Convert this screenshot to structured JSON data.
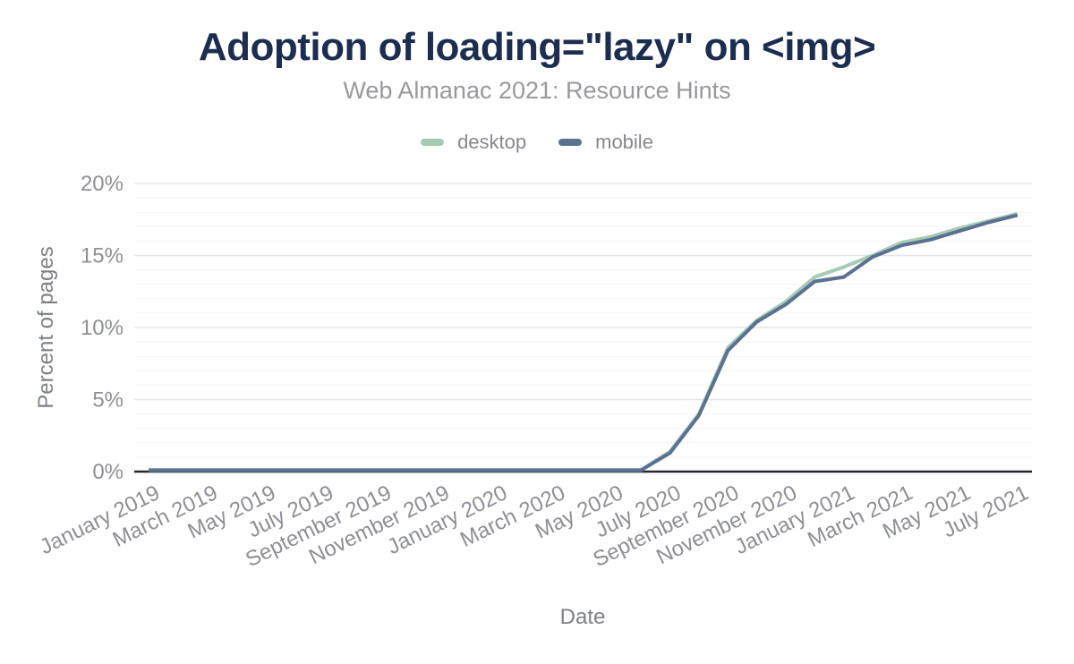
{
  "header": {
    "title": "Adoption of loading=\"lazy\" on <img>",
    "subtitle": "Web Almanac 2021: Resource Hints"
  },
  "colors": {
    "title": "#1c2d4f",
    "desktop": "#a7cab6",
    "mobile": "#5b7190",
    "axis_line": "#24282f",
    "grid_major": "#e4e5e7",
    "grid_minor": "#f4f4f6",
    "tick_text": "#8d8f94"
  },
  "chart_data": {
    "type": "line",
    "title": "Adoption of loading=\"lazy\" on <img>",
    "subtitle": "Web Almanac 2021: Resource Hints",
    "xlabel": "Date",
    "ylabel": "Percent of pages",
    "ylim": [
      0,
      20
    ],
    "yticks": [
      0,
      5,
      10,
      15,
      20
    ],
    "ytick_suffix": "%",
    "xtick_every": 2,
    "xtick_angle": -26,
    "grid": {
      "minor_step_pct": 1,
      "major_step_pct": 5,
      "orientation": "horizontal"
    },
    "legend_position": "top",
    "x": [
      "January 2019",
      "February 2019",
      "March 2019",
      "April 2019",
      "May 2019",
      "June 2019",
      "July 2019",
      "August 2019",
      "September 2019",
      "October 2019",
      "November 2019",
      "December 2019",
      "January 2020",
      "February 2020",
      "March 2020",
      "April 2020",
      "May 2020",
      "June 2020",
      "July 2020",
      "August 2020",
      "September 2020",
      "October 2020",
      "November 2020",
      "December 2020",
      "January 2021",
      "February 2021",
      "March 2021",
      "April 2021",
      "May 2021",
      "June 2021",
      "July 2021"
    ],
    "series": [
      {
        "name": "desktop",
        "color": "#a7cab6",
        "values": [
          0.1,
          0.1,
          0.1,
          0.1,
          0.1,
          0.1,
          0.1,
          0.1,
          0.1,
          0.1,
          0.1,
          0.1,
          0.1,
          0.1,
          0.1,
          0.1,
          0.1,
          0.1,
          1.4,
          4.0,
          8.6,
          10.5,
          11.8,
          13.5,
          14.2,
          15.0,
          15.9,
          16.3,
          16.9,
          17.4,
          17.9
        ]
      },
      {
        "name": "mobile",
        "color": "#5b7190",
        "values": [
          0.1,
          0.1,
          0.1,
          0.1,
          0.1,
          0.1,
          0.1,
          0.1,
          0.1,
          0.1,
          0.1,
          0.1,
          0.1,
          0.1,
          0.1,
          0.1,
          0.1,
          0.1,
          1.3,
          3.9,
          8.4,
          10.4,
          11.6,
          13.2,
          13.5,
          14.9,
          15.7,
          16.1,
          16.7,
          17.3,
          17.8
        ]
      }
    ]
  }
}
